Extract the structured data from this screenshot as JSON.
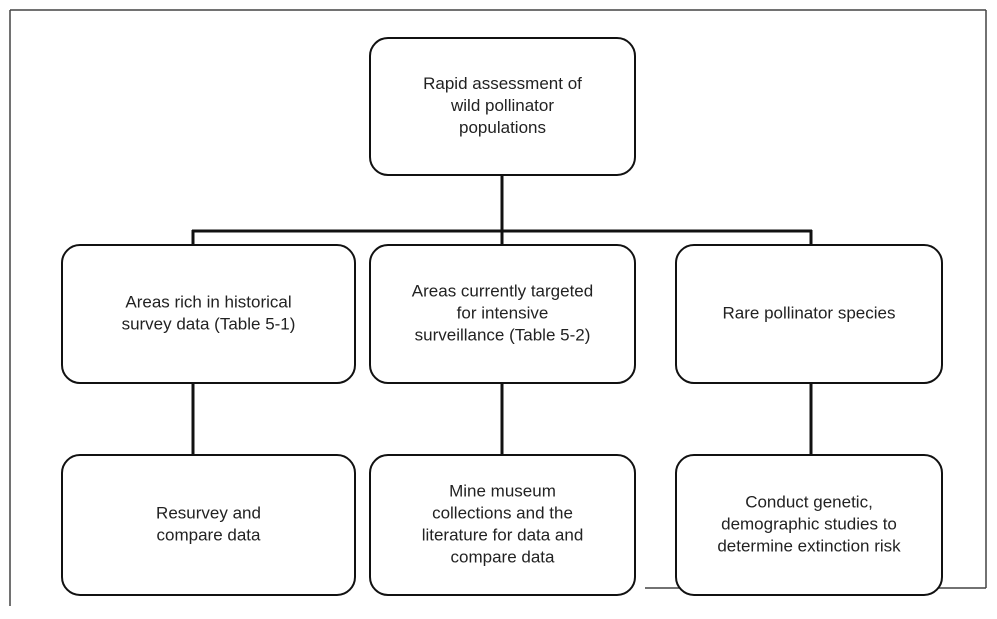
{
  "nodes": [
    {
      "lines": [
        "Rapid assessment of",
        "wild pollinator",
        "populations"
      ]
    },
    {
      "lines": [
        "Areas rich in historical",
        "survey data (Table 5-1)"
      ]
    },
    {
      "lines": [
        "Areas currently targeted",
        "for intensive",
        "surveillance (Table 5-2)"
      ]
    },
    {
      "lines": [
        "Rare pollinator species"
      ]
    },
    {
      "lines": [
        "Resurvey and",
        "compare data"
      ]
    },
    {
      "lines": [
        "Mine museum",
        "collections and the",
        "literature for data and",
        "compare data"
      ]
    },
    {
      "lines": [
        "Conduct genetic,",
        "demographic studies to",
        "determine extinction risk"
      ]
    }
  ]
}
